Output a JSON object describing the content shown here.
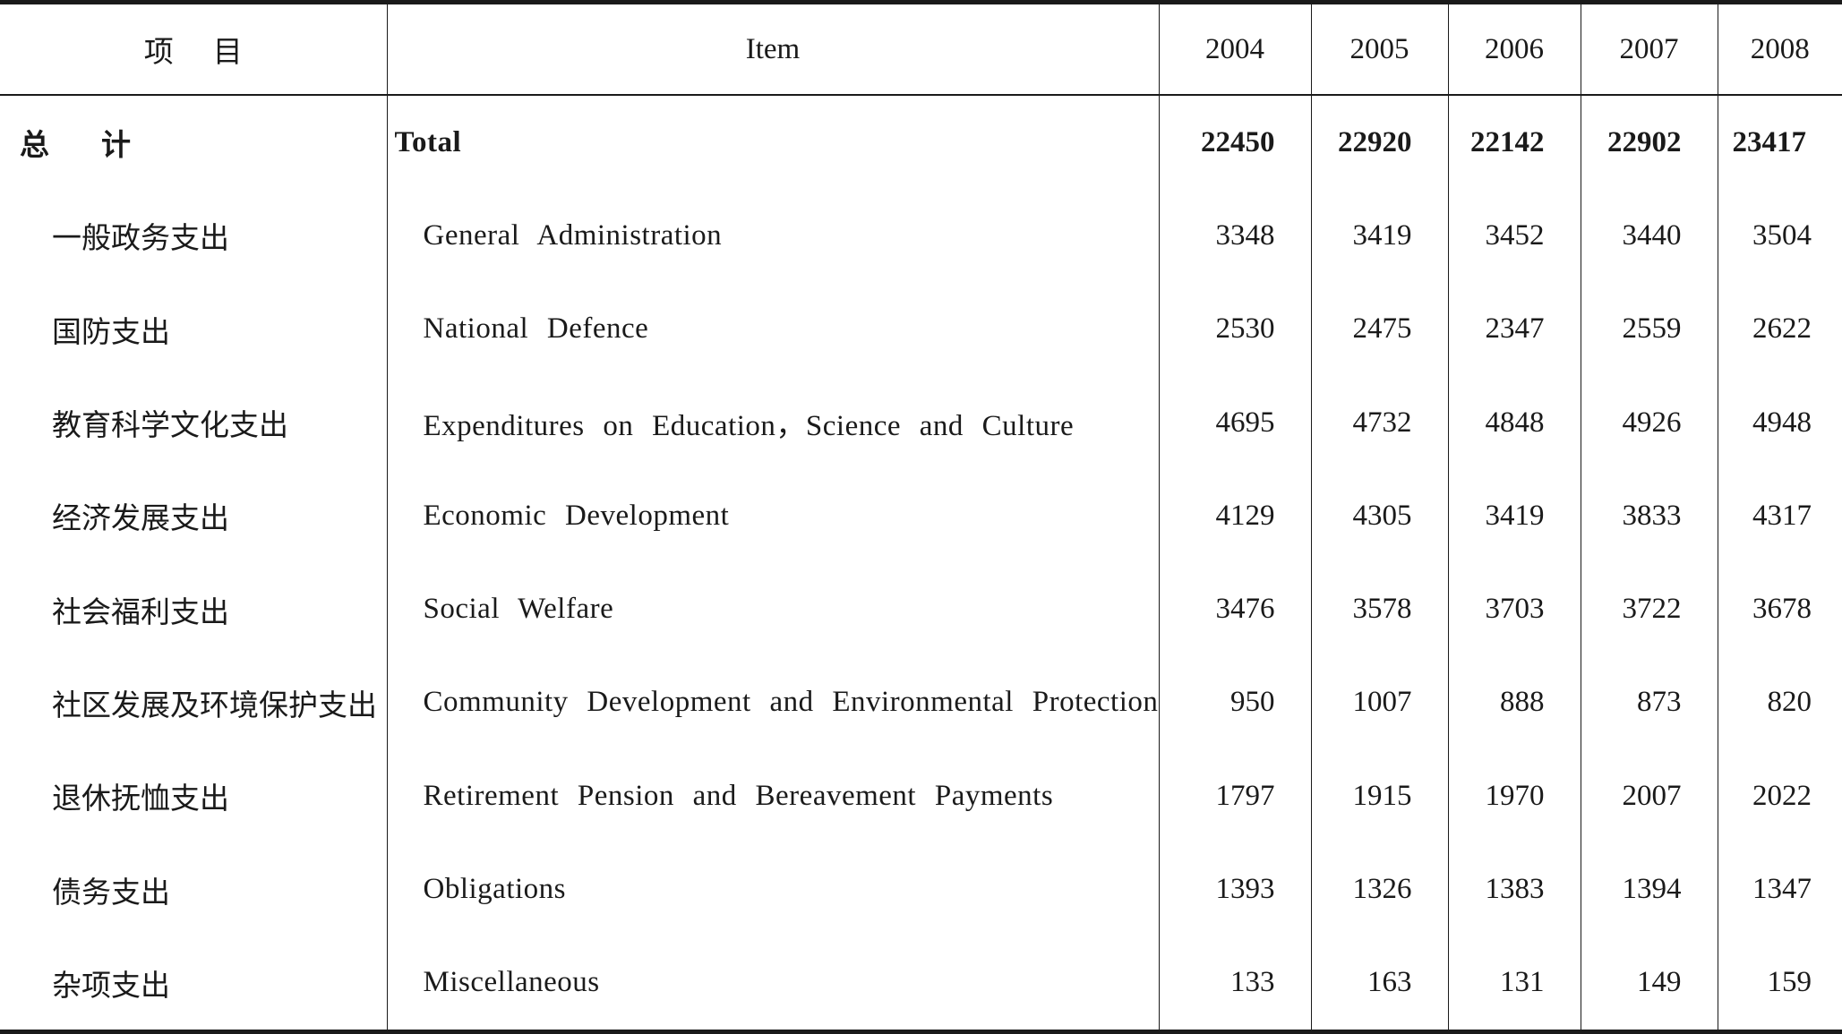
{
  "table": {
    "headers": {
      "cn": "项目",
      "en": "Item",
      "years": [
        "2004",
        "2005",
        "2006",
        "2007",
        "2008"
      ]
    },
    "total": {
      "cn": "总计",
      "en": "Total",
      "values": [
        "22450",
        "22920",
        "22142",
        "22902",
        "23417"
      ]
    },
    "rows": [
      {
        "cn": "一般政务支出",
        "en": "General Administration",
        "values": [
          "3348",
          "3419",
          "3452",
          "3440",
          "3504"
        ]
      },
      {
        "cn": "国防支出",
        "en": "National Defence",
        "values": [
          "2530",
          "2475",
          "2347",
          "2559",
          "2622"
        ]
      },
      {
        "cn": "教育科学文化支出",
        "en": "Expenditures on Education，Science and Culture",
        "values": [
          "4695",
          "4732",
          "4848",
          "4926",
          "4948"
        ]
      },
      {
        "cn": "经济发展支出",
        "en": "Economic Development",
        "values": [
          "4129",
          "4305",
          "3419",
          "3833",
          "4317"
        ]
      },
      {
        "cn": "社会福利支出",
        "en": "Social Welfare",
        "values": [
          "3476",
          "3578",
          "3703",
          "3722",
          "3678"
        ]
      },
      {
        "cn": "社区发展及环境保护支出",
        "en": "Community Development and Environmental Protection",
        "values": [
          "950",
          "1007",
          "888",
          "873",
          "820"
        ]
      },
      {
        "cn": "退休抚恤支出",
        "en": "Retirement Pension and Bereavement Payments",
        "values": [
          "1797",
          "1915",
          "1970",
          "2007",
          "2022"
        ]
      },
      {
        "cn": "债务支出",
        "en": "Obligations",
        "values": [
          "1393",
          "1326",
          "1383",
          "1394",
          "1347"
        ]
      },
      {
        "cn": "杂项支出",
        "en": "Miscellaneous",
        "values": [
          "133",
          "163",
          "131",
          "149",
          "159"
        ]
      }
    ]
  }
}
